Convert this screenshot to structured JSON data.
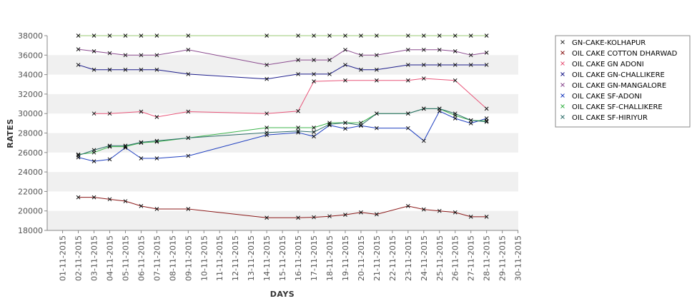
{
  "chart_data": {
    "type": "line",
    "xlabel": "DAYS",
    "ylabel": "RATES",
    "ylim": [
      18000,
      38000
    ],
    "yticks": [
      18000,
      20000,
      22000,
      24000,
      26000,
      28000,
      30000,
      32000,
      34000,
      36000,
      38000
    ],
    "x_dates": [
      "01-11-2015",
      "02-11-2015",
      "03-11-2015",
      "04-11-2015",
      "05-11-2015",
      "06-11-2015",
      "07-11-2015",
      "08-11-2015",
      "09-11-2015",
      "10-11-2015",
      "11-11-2015",
      "12-11-2015",
      "13-11-2015",
      "14-11-2015",
      "15-11-2015",
      "16-11-2015",
      "17-11-2015",
      "18-11-2015",
      "19-11-2015",
      "20-11-2015",
      "21-11-2015",
      "22-11-2015",
      "23-11-2015",
      "24-11-2015",
      "25-11-2015",
      "26-11-2015",
      "27-11-2015",
      "28-11-2015",
      "29-11-2015",
      "30-11-2015"
    ],
    "grid": "alternating horizontal bands",
    "legend_position": "right",
    "series": [
      {
        "name": "GN-CAKE-KOLHAPUR",
        "color": "#98c870",
        "points": [
          [
            "02-11-2015",
            38000
          ],
          [
            "03-11-2015",
            38000
          ],
          [
            "04-11-2015",
            38000
          ],
          [
            "05-11-2015",
            38000
          ],
          [
            "06-11-2015",
            38000
          ],
          [
            "07-11-2015",
            38000
          ],
          [
            "09-11-2015",
            38000
          ],
          [
            "14-11-2015",
            38000
          ],
          [
            "16-11-2015",
            38000
          ],
          [
            "17-11-2015",
            38000
          ],
          [
            "18-11-2015",
            38000
          ],
          [
            "19-11-2015",
            38000
          ],
          [
            "20-11-2015",
            38000
          ],
          [
            "21-11-2015",
            38000
          ],
          [
            "23-11-2015",
            38000
          ],
          [
            "24-11-2015",
            38000
          ],
          [
            "25-11-2015",
            38000
          ],
          [
            "26-11-2015",
            38000
          ],
          [
            "27-11-2015",
            38000
          ],
          [
            "28-11-2015",
            38000
          ]
        ]
      },
      {
        "name": "OIL CAKE COTTON DHARWAD",
        "color": "#8b1a1a",
        "points": [
          [
            "02-11-2015",
            21400
          ],
          [
            "03-11-2015",
            21400
          ],
          [
            "04-11-2015",
            21200
          ],
          [
            "05-11-2015",
            21000
          ],
          [
            "06-11-2015",
            20500
          ],
          [
            "07-11-2015",
            20200
          ],
          [
            "09-11-2015",
            20200
          ],
          [
            "14-11-2015",
            19300
          ],
          [
            "16-11-2015",
            19300
          ],
          [
            "17-11-2015",
            19350
          ],
          [
            "18-11-2015",
            19450
          ],
          [
            "19-11-2015",
            19600
          ],
          [
            "20-11-2015",
            19850
          ],
          [
            "21-11-2015",
            19650
          ],
          [
            "23-11-2015",
            20500
          ],
          [
            "24-11-2015",
            20150
          ],
          [
            "25-11-2015",
            20000
          ],
          [
            "26-11-2015",
            19850
          ],
          [
            "27-11-2015",
            19400
          ],
          [
            "28-11-2015",
            19400
          ]
        ]
      },
      {
        "name": "OIL CAKE GN ADONI",
        "color": "#e8567a",
        "points": [
          [
            "03-11-2015",
            30000
          ],
          [
            "04-11-2015",
            30000
          ],
          [
            "06-11-2015",
            30200
          ],
          [
            "07-11-2015",
            29650
          ],
          [
            "09-11-2015",
            30200
          ],
          [
            "14-11-2015",
            30000
          ],
          [
            "16-11-2015",
            30250
          ],
          [
            "17-11-2015",
            33300
          ],
          [
            "19-11-2015",
            33400
          ],
          [
            "21-11-2015",
            33400
          ],
          [
            "23-11-2015",
            33400
          ],
          [
            "24-11-2015",
            33600
          ],
          [
            "26-11-2015",
            33400
          ],
          [
            "28-11-2015",
            30500
          ]
        ]
      },
      {
        "name": "OIL CAKE GN-CHALLIKERE",
        "color": "#1c1c8a",
        "points": [
          [
            "02-11-2015",
            35000
          ],
          [
            "03-11-2015",
            34500
          ],
          [
            "04-11-2015",
            34500
          ],
          [
            "05-11-2015",
            34500
          ],
          [
            "06-11-2015",
            34500
          ],
          [
            "07-11-2015",
            34500
          ],
          [
            "09-11-2015",
            34050
          ],
          [
            "14-11-2015",
            33550
          ],
          [
            "16-11-2015",
            34050
          ],
          [
            "17-11-2015",
            34050
          ],
          [
            "18-11-2015",
            34050
          ],
          [
            "19-11-2015",
            35000
          ],
          [
            "20-11-2015",
            34500
          ],
          [
            "21-11-2015",
            34500
          ],
          [
            "23-11-2015",
            35000
          ],
          [
            "24-11-2015",
            35000
          ],
          [
            "25-11-2015",
            35000
          ],
          [
            "26-11-2015",
            35000
          ],
          [
            "27-11-2015",
            35000
          ],
          [
            "28-11-2015",
            35000
          ]
        ]
      },
      {
        "name": "OIL CAKE GN-MANGALORE",
        "color": "#8a4a8e",
        "points": [
          [
            "02-11-2015",
            36600
          ],
          [
            "03-11-2015",
            36400
          ],
          [
            "04-11-2015",
            36200
          ],
          [
            "05-11-2015",
            36000
          ],
          [
            "06-11-2015",
            36000
          ],
          [
            "07-11-2015",
            36000
          ],
          [
            "09-11-2015",
            36550
          ],
          [
            "14-11-2015",
            35000
          ],
          [
            "16-11-2015",
            35500
          ],
          [
            "17-11-2015",
            35500
          ],
          [
            "18-11-2015",
            35500
          ],
          [
            "19-11-2015",
            36550
          ],
          [
            "20-11-2015",
            36000
          ],
          [
            "21-11-2015",
            36000
          ],
          [
            "23-11-2015",
            36550
          ],
          [
            "24-11-2015",
            36550
          ],
          [
            "25-11-2015",
            36550
          ],
          [
            "26-11-2015",
            36400
          ],
          [
            "27-11-2015",
            36000
          ],
          [
            "28-11-2015",
            36250
          ]
        ]
      },
      {
        "name": "OIL CAKE SF-ADONI",
        "color": "#2040c0",
        "points": [
          [
            "02-11-2015",
            25500
          ],
          [
            "03-11-2015",
            25100
          ],
          [
            "04-11-2015",
            25300
          ],
          [
            "05-11-2015",
            26500
          ],
          [
            "06-11-2015",
            25400
          ],
          [
            "07-11-2015",
            25400
          ],
          [
            "09-11-2015",
            25650
          ],
          [
            "14-11-2015",
            27800
          ],
          [
            "16-11-2015",
            28050
          ],
          [
            "17-11-2015",
            27650
          ],
          [
            "18-11-2015",
            28800
          ],
          [
            "19-11-2015",
            28450
          ],
          [
            "20-11-2015",
            28750
          ],
          [
            "21-11-2015",
            28500
          ],
          [
            "23-11-2015",
            28500
          ],
          [
            "24-11-2015",
            27200
          ],
          [
            "25-11-2015",
            30250
          ],
          [
            "26-11-2015",
            29500
          ],
          [
            "27-11-2015",
            29000
          ],
          [
            "28-11-2015",
            29500
          ]
        ]
      },
      {
        "name": "OIL CAKE SF-CHALLIKERE",
        "color": "#3cb44b",
        "points": [
          [
            "02-11-2015",
            25800
          ],
          [
            "03-11-2015",
            26000
          ],
          [
            "04-11-2015",
            26600
          ],
          [
            "05-11-2015",
            26600
          ],
          [
            "06-11-2015",
            27000
          ],
          [
            "07-11-2015",
            27100
          ],
          [
            "09-11-2015",
            27500
          ],
          [
            "14-11-2015",
            28550
          ],
          [
            "16-11-2015",
            28550
          ],
          [
            "17-11-2015",
            28550
          ],
          [
            "18-11-2015",
            29050
          ],
          [
            "19-11-2015",
            29050
          ],
          [
            "20-11-2015",
            29050
          ],
          [
            "21-11-2015",
            30000
          ],
          [
            "23-11-2015",
            30000
          ],
          [
            "24-11-2015",
            30500
          ],
          [
            "25-11-2015",
            30500
          ],
          [
            "26-11-2015",
            29800
          ],
          [
            "27-11-2015",
            29300
          ],
          [
            "28-11-2015",
            29250
          ]
        ]
      },
      {
        "name": "OIL CAKE SF-HIRIYUR",
        "color": "#2e6e6a",
        "points": [
          [
            "02-11-2015",
            25700
          ],
          [
            "03-11-2015",
            26250
          ],
          [
            "04-11-2015",
            26700
          ],
          [
            "05-11-2015",
            26700
          ],
          [
            "06-11-2015",
            27050
          ],
          [
            "07-11-2015",
            27200
          ],
          [
            "09-11-2015",
            27500
          ],
          [
            "14-11-2015",
            28050
          ],
          [
            "16-11-2015",
            28200
          ],
          [
            "17-11-2015",
            28100
          ],
          [
            "18-11-2015",
            28900
          ],
          [
            "19-11-2015",
            29050
          ],
          [
            "20-11-2015",
            28800
          ],
          [
            "21-11-2015",
            30000
          ],
          [
            "23-11-2015",
            30000
          ],
          [
            "24-11-2015",
            30500
          ],
          [
            "25-11-2015",
            30500
          ],
          [
            "26-11-2015",
            30000
          ],
          [
            "27-11-2015",
            29300
          ],
          [
            "28-11-2015",
            29150
          ]
        ]
      }
    ]
  }
}
